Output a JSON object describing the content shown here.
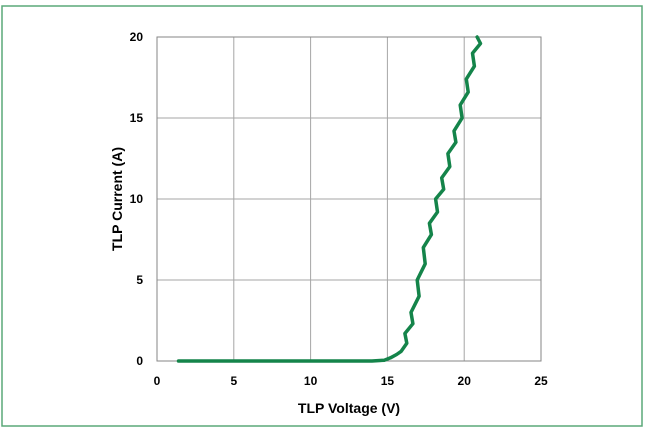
{
  "chart_data": {
    "type": "line",
    "title": "",
    "xlabel": "TLP Voltage (V)",
    "ylabel": "TLP Current (A)",
    "xlim": [
      0,
      25
    ],
    "ylim": [
      0,
      20
    ],
    "x_ticks": [
      0,
      5,
      10,
      15,
      20,
      25
    ],
    "y_ticks": [
      0,
      5,
      10,
      15,
      20
    ],
    "x_tick_labels": [
      "0",
      "5",
      "10",
      "15",
      "20",
      "25"
    ],
    "y_tick_labels": [
      "0",
      "5",
      "10",
      "15",
      "20"
    ],
    "grid": true,
    "legend": "none",
    "series": [
      {
        "color": "#14844a",
        "x": [
          1.4,
          3,
          5,
          8,
          10,
          12,
          14,
          14.8,
          15.2,
          15.6,
          15.9,
          16.1,
          16.3,
          16.5,
          16.7,
          16.9,
          17.1,
          17.3,
          17.5,
          17.7,
          17.9,
          18.1,
          18.3,
          18.5,
          18.7,
          18.9,
          19.1,
          19.3,
          19.5,
          19.7,
          19.9,
          20.1,
          20.3,
          20.5,
          20.7,
          20.9,
          21.0
        ],
        "y": [
          0,
          0,
          0,
          0,
          0,
          0,
          0,
          0.05,
          0.2,
          0.4,
          0.6,
          1.1,
          1.7,
          2.3,
          3.0,
          4.0,
          5.0,
          6.0,
          7.0,
          7.8,
          8.5,
          9.2,
          10.0,
          10.6,
          11.3,
          12.0,
          12.8,
          13.5,
          14.2,
          15.0,
          15.8,
          16.6,
          17.4,
          18.2,
          19.0,
          19.6,
          20.0
        ]
      }
    ],
    "colors": {
      "frame": "#5aa878",
      "grid": "#a6a6a6",
      "axis": "#868686",
      "text": "#000000"
    }
  }
}
